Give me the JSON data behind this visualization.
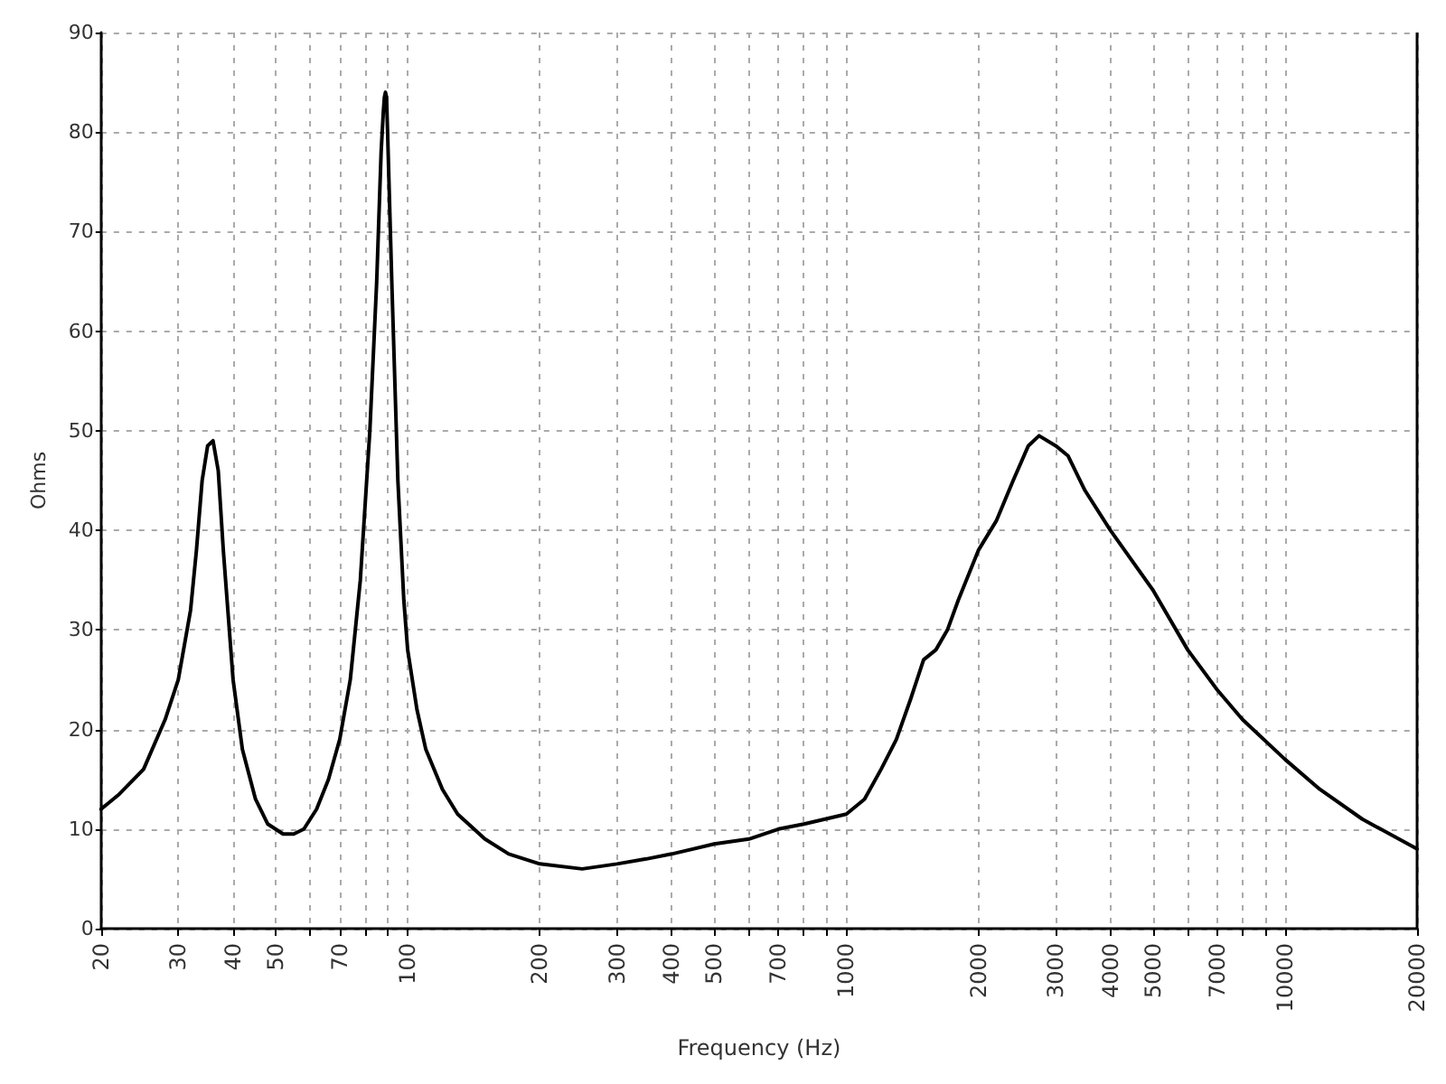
{
  "chart_data": {
    "type": "line",
    "xlabel": "Frequency (Hz)",
    "ylabel": "Ohms",
    "log": "x",
    "grid": true,
    "marker": "none",
    "line_style": "solid",
    "xlim": [
      20,
      20000
    ],
    "ylim": [
      0,
      90
    ],
    "xticks": [
      20,
      30,
      40,
      50,
      {
        "value": 60,
        "label": null
      },
      70,
      {
        "value": 80,
        "label": null
      },
      {
        "value": 90,
        "label": null
      },
      100,
      200,
      300,
      400,
      500,
      {
        "value": 600,
        "label": null
      },
      700,
      {
        "value": 800,
        "label": null
      },
      {
        "value": 900,
        "label": null
      },
      1000,
      2000,
      3000,
      4000,
      5000,
      {
        "value": 6000,
        "label": null
      },
      7000,
      {
        "value": 8000,
        "label": null
      },
      {
        "value": 9000,
        "label": null
      },
      10000,
      20000
    ],
    "yticks": [
      0,
      10,
      20,
      30,
      40,
      50,
      60,
      70,
      80,
      90
    ],
    "series": [
      {
        "color": "#000000",
        "x": [
          20,
          22,
          25,
          28,
          30,
          32,
          33,
          34,
          35,
          36,
          37,
          38,
          40,
          42,
          45,
          48,
          52,
          55,
          58,
          62,
          66,
          70,
          74,
          78,
          82,
          85,
          87,
          88,
          88.5,
          89,
          89.5,
          90,
          92,
          95,
          98,
          100,
          105,
          110,
          120,
          130,
          150,
          170,
          200,
          250,
          300,
          350,
          400,
          500,
          600,
          700,
          800,
          1000,
          1100,
          1200,
          1300,
          1400,
          1500,
          1600,
          1700,
          1800,
          2000,
          2200,
          2400,
          2600,
          2750,
          3000,
          3200,
          3500,
          4000,
          5000,
          6000,
          7000,
          8000,
          10000,
          12000,
          15000,
          20000
        ],
        "values": [
          12,
          13.5,
          16,
          21,
          25,
          32,
          38,
          45,
          48.5,
          49,
          46,
          38,
          25,
          18,
          13,
          10.5,
          9.5,
          9.5,
          10,
          12,
          15,
          19,
          25,
          35,
          50,
          65,
          78,
          82,
          83.5,
          84,
          83.5,
          80,
          65,
          45,
          33,
          28,
          22,
          18,
          14,
          11.5,
          9,
          7.5,
          6.5,
          6,
          6.5,
          7,
          7.5,
          8.5,
          9,
          10,
          10.5,
          11.5,
          13,
          16,
          19,
          23,
          27,
          28,
          30,
          33,
          38,
          41,
          45,
          48.5,
          49.5,
          48.5,
          47.5,
          44,
          40,
          34,
          28,
          24,
          21,
          17,
          14,
          11,
          8
        ]
      }
    ]
  }
}
